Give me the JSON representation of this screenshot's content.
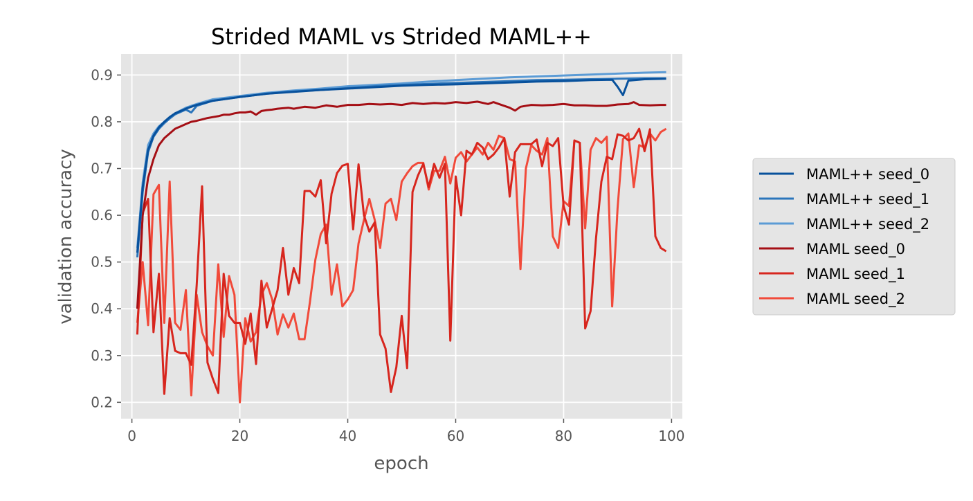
{
  "chart_data": {
    "type": "line",
    "title": "Strided MAML vs Strided MAML++",
    "xlabel": "epoch",
    "ylabel": "validation accuracy",
    "xlim": [
      -2,
      102
    ],
    "ylim": [
      0.165,
      0.945
    ],
    "x_ticks": [
      0,
      20,
      40,
      60,
      80,
      100
    ],
    "y_ticks": [
      0.2,
      0.3,
      0.4,
      0.5,
      0.6,
      0.7,
      0.8,
      0.9
    ],
    "grid": true,
    "background": "#e5e5e5",
    "legend_placement": "right, outside plot",
    "series": [
      {
        "name": "MAML++ seed_0",
        "color": "#08519c",
        "x": [
          1,
          2,
          3,
          4,
          5,
          6,
          7,
          8,
          10,
          12,
          15,
          20,
          25,
          30,
          35,
          40,
          45,
          50,
          55,
          60,
          65,
          70,
          75,
          80,
          85,
          89,
          90,
          91,
          92,
          95,
          99
        ],
        "y": [
          0.52,
          0.66,
          0.74,
          0.77,
          0.788,
          0.8,
          0.81,
          0.818,
          0.828,
          0.836,
          0.845,
          0.853,
          0.86,
          0.864,
          0.868,
          0.871,
          0.874,
          0.877,
          0.879,
          0.88,
          0.882,
          0.884,
          0.886,
          0.887,
          0.889,
          0.89,
          0.875,
          0.857,
          0.888,
          0.891,
          0.892
        ]
      },
      {
        "name": "MAML++ seed_1",
        "color": "#2b75bb",
        "x": [
          1,
          2,
          3,
          4,
          5,
          6,
          7,
          8,
          10,
          11,
          12,
          15,
          20,
          25,
          30,
          35,
          40,
          45,
          50,
          55,
          60,
          65,
          70,
          75,
          80,
          85,
          90,
          95,
          99
        ],
        "y": [
          0.51,
          0.65,
          0.735,
          0.768,
          0.785,
          0.797,
          0.807,
          0.816,
          0.826,
          0.82,
          0.834,
          0.845,
          0.853,
          0.86,
          0.865,
          0.868,
          0.872,
          0.876,
          0.879,
          0.881,
          0.883,
          0.885,
          0.887,
          0.889,
          0.89,
          0.891,
          0.892,
          0.893,
          0.893
        ]
      },
      {
        "name": "MAML++ seed_2",
        "color": "#5b9bd5",
        "x": [
          1,
          2,
          3,
          4,
          5,
          6,
          7,
          8,
          10,
          12,
          15,
          20,
          25,
          30,
          35,
          40,
          45,
          50,
          55,
          60,
          65,
          70,
          75,
          80,
          85,
          90,
          95,
          99
        ],
        "y": [
          0.53,
          0.67,
          0.75,
          0.775,
          0.79,
          0.8,
          0.81,
          0.818,
          0.83,
          0.838,
          0.848,
          0.855,
          0.862,
          0.867,
          0.871,
          0.876,
          0.879,
          0.882,
          0.886,
          0.889,
          0.892,
          0.895,
          0.897,
          0.899,
          0.901,
          0.903,
          0.905,
          0.906
        ]
      },
      {
        "name": "MAML seed_0",
        "color": "#a50f15",
        "x": [
          1,
          2,
          3,
          4,
          5,
          6,
          7,
          8,
          9,
          10,
          11,
          12,
          13,
          14,
          15,
          16,
          17,
          18,
          19,
          20,
          21,
          22,
          23,
          24,
          25,
          26,
          27,
          28,
          29,
          30,
          32,
          34,
          36,
          38,
          40,
          42,
          44,
          46,
          48,
          50,
          52,
          54,
          56,
          58,
          60,
          62,
          64,
          66,
          67,
          68,
          70,
          71,
          72,
          74,
          76,
          78,
          80,
          82,
          84,
          86,
          88,
          90,
          92,
          93,
          94,
          96,
          98,
          99
        ],
        "y": [
          0.4,
          0.6,
          0.68,
          0.72,
          0.75,
          0.765,
          0.775,
          0.785,
          0.79,
          0.795,
          0.8,
          0.802,
          0.805,
          0.808,
          0.81,
          0.812,
          0.815,
          0.815,
          0.818,
          0.82,
          0.82,
          0.822,
          0.815,
          0.823,
          0.825,
          0.826,
          0.828,
          0.829,
          0.83,
          0.828,
          0.832,
          0.83,
          0.835,
          0.832,
          0.836,
          0.836,
          0.838,
          0.837,
          0.838,
          0.836,
          0.84,
          0.838,
          0.84,
          0.839,
          0.842,
          0.84,
          0.843,
          0.838,
          0.842,
          0.838,
          0.83,
          0.824,
          0.832,
          0.836,
          0.835,
          0.836,
          0.838,
          0.835,
          0.835,
          0.834,
          0.834,
          0.837,
          0.838,
          0.842,
          0.836,
          0.835,
          0.836,
          0.836
        ]
      },
      {
        "name": "MAML seed_1",
        "color": "#d7261e",
        "x": [
          1,
          2,
          3,
          4,
          5,
          6,
          7,
          8,
          9,
          10,
          11,
          12,
          13,
          14,
          15,
          16,
          17,
          18,
          19,
          20,
          21,
          22,
          23,
          24,
          25,
          26,
          27,
          28,
          29,
          30,
          31,
          32,
          33,
          34,
          35,
          36,
          37,
          38,
          39,
          40,
          41,
          42,
          43,
          44,
          45,
          46,
          47,
          48,
          49,
          50,
          51,
          52,
          53,
          54,
          55,
          56,
          57,
          58,
          59,
          60,
          61,
          62,
          63,
          64,
          65,
          66,
          67,
          68,
          69,
          70,
          71,
          72,
          73,
          74,
          75,
          76,
          77,
          78,
          79,
          80,
          81,
          82,
          83,
          84,
          85,
          86,
          87,
          88,
          89,
          90,
          91,
          92,
          93,
          94,
          95,
          96,
          97,
          98,
          99
        ],
        "y": [
          0.345,
          0.605,
          0.635,
          0.35,
          0.475,
          0.218,
          0.38,
          0.31,
          0.305,
          0.305,
          0.28,
          0.45,
          0.662,
          0.285,
          0.25,
          0.22,
          0.475,
          0.385,
          0.37,
          0.37,
          0.325,
          0.39,
          0.282,
          0.46,
          0.36,
          0.4,
          0.44,
          0.53,
          0.43,
          0.487,
          0.455,
          0.652,
          0.652,
          0.64,
          0.675,
          0.54,
          0.646,
          0.69,
          0.706,
          0.71,
          0.57,
          0.709,
          0.6,
          0.565,
          0.585,
          0.345,
          0.315,
          0.222,
          0.275,
          0.385,
          0.273,
          0.65,
          0.685,
          0.71,
          0.66,
          0.71,
          0.68,
          0.71,
          0.332,
          0.683,
          0.6,
          0.738,
          0.73,
          0.755,
          0.745,
          0.72,
          0.73,
          0.745,
          0.765,
          0.64,
          0.735,
          0.752,
          0.752,
          0.752,
          0.762,
          0.705,
          0.755,
          0.748,
          0.765,
          0.62,
          0.58,
          0.76,
          0.755,
          0.358,
          0.395,
          0.55,
          0.672,
          0.725,
          0.72,
          0.773,
          0.77,
          0.76,
          0.765,
          0.785,
          0.737,
          0.784,
          0.555,
          0.53,
          0.523
        ]
      },
      {
        "name": "MAML seed_2",
        "color": "#f14a3a",
        "x": [
          1,
          2,
          3,
          4,
          5,
          6,
          7,
          8,
          9,
          10,
          11,
          12,
          13,
          14,
          15,
          16,
          17,
          18,
          19,
          20,
          21,
          22,
          23,
          24,
          25,
          26,
          27,
          28,
          29,
          30,
          31,
          32,
          33,
          34,
          35,
          36,
          37,
          38,
          39,
          40,
          41,
          42,
          43,
          44,
          45,
          46,
          47,
          48,
          49,
          50,
          51,
          52,
          53,
          54,
          55,
          56,
          57,
          58,
          59,
          60,
          61,
          62,
          63,
          64,
          65,
          66,
          67,
          68,
          69,
          70,
          71,
          72,
          73,
          74,
          75,
          76,
          77,
          78,
          79,
          80,
          81,
          82,
          83,
          84,
          85,
          86,
          87,
          88,
          89,
          90,
          91,
          92,
          93,
          94,
          95,
          96,
          97,
          98,
          99
        ],
        "y": [
          0.37,
          0.5,
          0.365,
          0.645,
          0.665,
          0.37,
          0.672,
          0.37,
          0.355,
          0.44,
          0.215,
          0.43,
          0.35,
          0.32,
          0.3,
          0.495,
          0.34,
          0.47,
          0.43,
          0.2,
          0.38,
          0.33,
          0.35,
          0.43,
          0.455,
          0.42,
          0.345,
          0.388,
          0.36,
          0.39,
          0.335,
          0.335,
          0.415,
          0.505,
          0.56,
          0.58,
          0.43,
          0.495,
          0.405,
          0.42,
          0.44,
          0.54,
          0.59,
          0.635,
          0.59,
          0.53,
          0.625,
          0.635,
          0.59,
          0.672,
          0.69,
          0.705,
          0.712,
          0.712,
          0.655,
          0.695,
          0.695,
          0.725,
          0.668,
          0.723,
          0.735,
          0.715,
          0.73,
          0.745,
          0.73,
          0.755,
          0.74,
          0.77,
          0.765,
          0.72,
          0.715,
          0.485,
          0.7,
          0.75,
          0.738,
          0.73,
          0.765,
          0.555,
          0.53,
          0.63,
          0.62,
          0.76,
          0.755,
          0.572,
          0.74,
          0.765,
          0.755,
          0.768,
          0.405,
          0.615,
          0.763,
          0.775,
          0.66,
          0.75,
          0.745,
          0.775,
          0.76,
          0.778,
          0.785
        ]
      }
    ]
  }
}
